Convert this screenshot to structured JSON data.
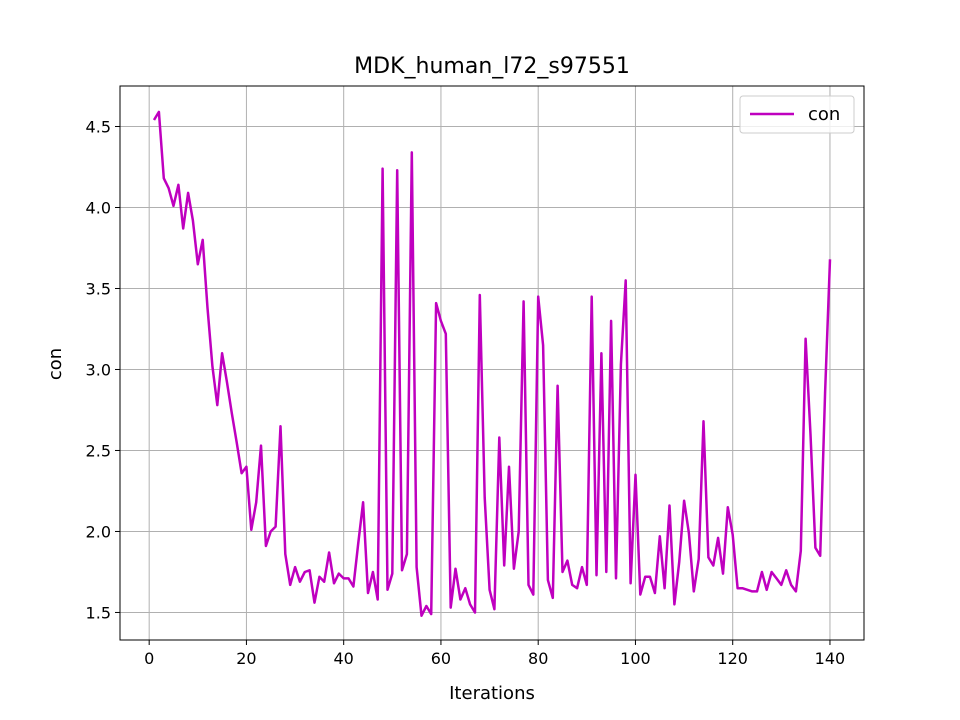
{
  "chart_data": {
    "type": "line",
    "title": "MDK_human_l72_s97551",
    "xlabel": "Iterations",
    "ylabel": "con",
    "xlim": [
      -6,
      147
    ],
    "ylim": [
      1.33,
      4.75
    ],
    "xticks": [
      0,
      20,
      40,
      60,
      80,
      100,
      120,
      140
    ],
    "yticks": [
      1.5,
      2.0,
      2.5,
      3.0,
      3.5,
      4.0,
      4.5
    ],
    "xtick_labels": [
      "0",
      "20",
      "40",
      "60",
      "80",
      "100",
      "120",
      "140"
    ],
    "ytick_labels": [
      "1.5",
      "2.0",
      "2.5",
      "3.0",
      "3.5",
      "4.0",
      "4.5"
    ],
    "grid": true,
    "legend_position": "upper right",
    "series": [
      {
        "name": "con",
        "color": "#bf00bf",
        "x": [
          1,
          2,
          3,
          4,
          5,
          6,
          7,
          8,
          9,
          10,
          11,
          12,
          13,
          14,
          15,
          16,
          17,
          18,
          19,
          20,
          21,
          22,
          23,
          24,
          25,
          26,
          27,
          28,
          29,
          30,
          31,
          32,
          33,
          34,
          35,
          36,
          37,
          38,
          39,
          40,
          41,
          42,
          43,
          44,
          45,
          46,
          47,
          48,
          49,
          50,
          51,
          52,
          53,
          54,
          55,
          56,
          57,
          58,
          59,
          60,
          61,
          62,
          63,
          64,
          65,
          66,
          67,
          68,
          69,
          70,
          71,
          72,
          73,
          74,
          75,
          76,
          77,
          78,
          79,
          80,
          81,
          82,
          83,
          84,
          85,
          86,
          87,
          88,
          89,
          90,
          91,
          92,
          93,
          94,
          95,
          96,
          97,
          98,
          99,
          100,
          101,
          102,
          103,
          104,
          105,
          106,
          107,
          108,
          109,
          110,
          111,
          112,
          113,
          114,
          115,
          116,
          117,
          118,
          119,
          120,
          121,
          122,
          123,
          124,
          125,
          126,
          127,
          128,
          129,
          130,
          131,
          132,
          133,
          134,
          135,
          136,
          137,
          138,
          139,
          140
        ],
        "values": [
          4.54,
          4.59,
          4.18,
          4.12,
          4.01,
          4.14,
          3.87,
          4.09,
          3.92,
          3.65,
          3.8,
          3.38,
          3.02,
          2.78,
          3.1,
          2.92,
          2.73,
          2.55,
          2.36,
          2.4,
          2.01,
          2.18,
          2.53,
          1.91,
          2.0,
          2.03,
          2.65,
          1.86,
          1.67,
          1.78,
          1.69,
          1.75,
          1.76,
          1.56,
          1.72,
          1.69,
          1.87,
          1.68,
          1.74,
          1.71,
          1.71,
          1.66,
          1.93,
          2.18,
          1.62,
          1.75,
          1.58,
          4.24,
          1.64,
          1.74,
          4.23,
          1.76,
          1.86,
          4.34,
          1.78,
          1.48,
          1.54,
          1.49,
          3.41,
          3.3,
          3.22,
          1.53,
          1.77,
          1.58,
          1.65,
          1.55,
          1.5,
          3.46,
          2.21,
          1.64,
          1.52,
          2.58,
          1.79,
          2.4,
          1.77,
          2.0,
          3.42,
          1.67,
          1.61,
          3.45,
          3.15,
          1.7,
          1.59,
          2.9,
          1.75,
          1.82,
          1.67,
          1.65,
          1.78,
          1.67,
          3.45,
          1.73,
          3.1,
          1.75,
          3.3,
          1.71,
          3.03,
          3.55,
          1.68,
          2.35,
          1.61,
          1.72,
          1.72,
          1.62,
          1.97,
          1.65,
          2.16,
          1.55,
          1.81,
          2.19,
          1.99,
          1.63,
          1.83,
          2.68,
          1.84,
          1.79,
          1.96,
          1.74,
          2.15,
          1.98,
          1.65,
          1.65,
          1.64,
          1.63,
          1.63,
          1.75,
          1.64,
          1.75,
          1.71,
          1.67,
          1.76,
          1.67,
          1.63,
          1.88,
          3.19,
          2.6,
          1.9,
          1.85,
          2.86,
          3.68
        ]
      }
    ]
  }
}
